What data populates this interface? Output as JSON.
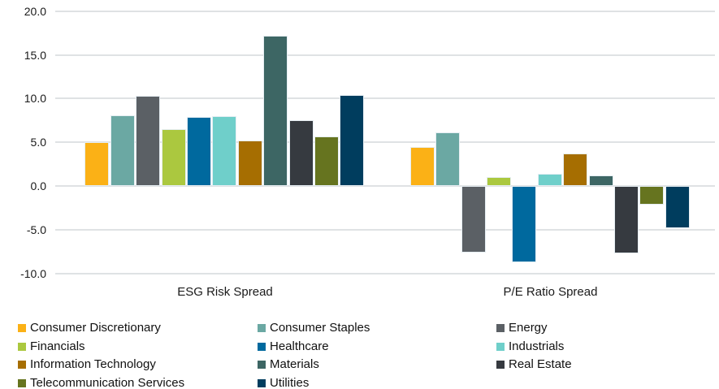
{
  "chart_data": {
    "type": "bar",
    "title": "",
    "categories": [
      "ESG Risk Spread",
      "P/E Ratio Spread"
    ],
    "series": [
      {
        "name": "Consumer Discretionary",
        "color": "#FBB116",
        "values": [
          5.0,
          4.5
        ]
      },
      {
        "name": "Consumer Staples",
        "color": "#6BA8A3",
        "values": [
          8.1,
          6.1
        ]
      },
      {
        "name": "Energy",
        "color": "#5B6065",
        "values": [
          10.3,
          -7.6
        ]
      },
      {
        "name": "Financials",
        "color": "#ABC83F",
        "values": [
          6.5,
          1.0
        ]
      },
      {
        "name": "Healthcare",
        "color": "#00699E",
        "values": [
          7.9,
          -8.7
        ]
      },
      {
        "name": "Industrials",
        "color": "#6FCFCA",
        "values": [
          8.0,
          1.4
        ]
      },
      {
        "name": "Information Technology",
        "color": "#A66E01",
        "values": [
          5.2,
          3.7
        ]
      },
      {
        "name": "Materials",
        "color": "#3D6664",
        "values": [
          17.2,
          1.2
        ]
      },
      {
        "name": "Real Estate",
        "color": "#363A40",
        "values": [
          7.5,
          -7.7
        ]
      },
      {
        "name": "Telecommunication Services",
        "color": "#66741F",
        "values": [
          5.7,
          -2.1
        ]
      },
      {
        "name": "Utilities",
        "color": "#003D5E",
        "values": [
          10.4,
          -4.8
        ]
      }
    ],
    "y_axis": {
      "min": -10,
      "max": 20,
      "step": 5,
      "tick_labels": [
        "20.0",
        "15.0",
        "10.0",
        "5.0",
        "0.0",
        "-5.0",
        "-10.0"
      ]
    },
    "grid": true,
    "legend_position": "bottom",
    "gridline_color": "#dfe2e4",
    "background_color": "#ffffff"
  }
}
